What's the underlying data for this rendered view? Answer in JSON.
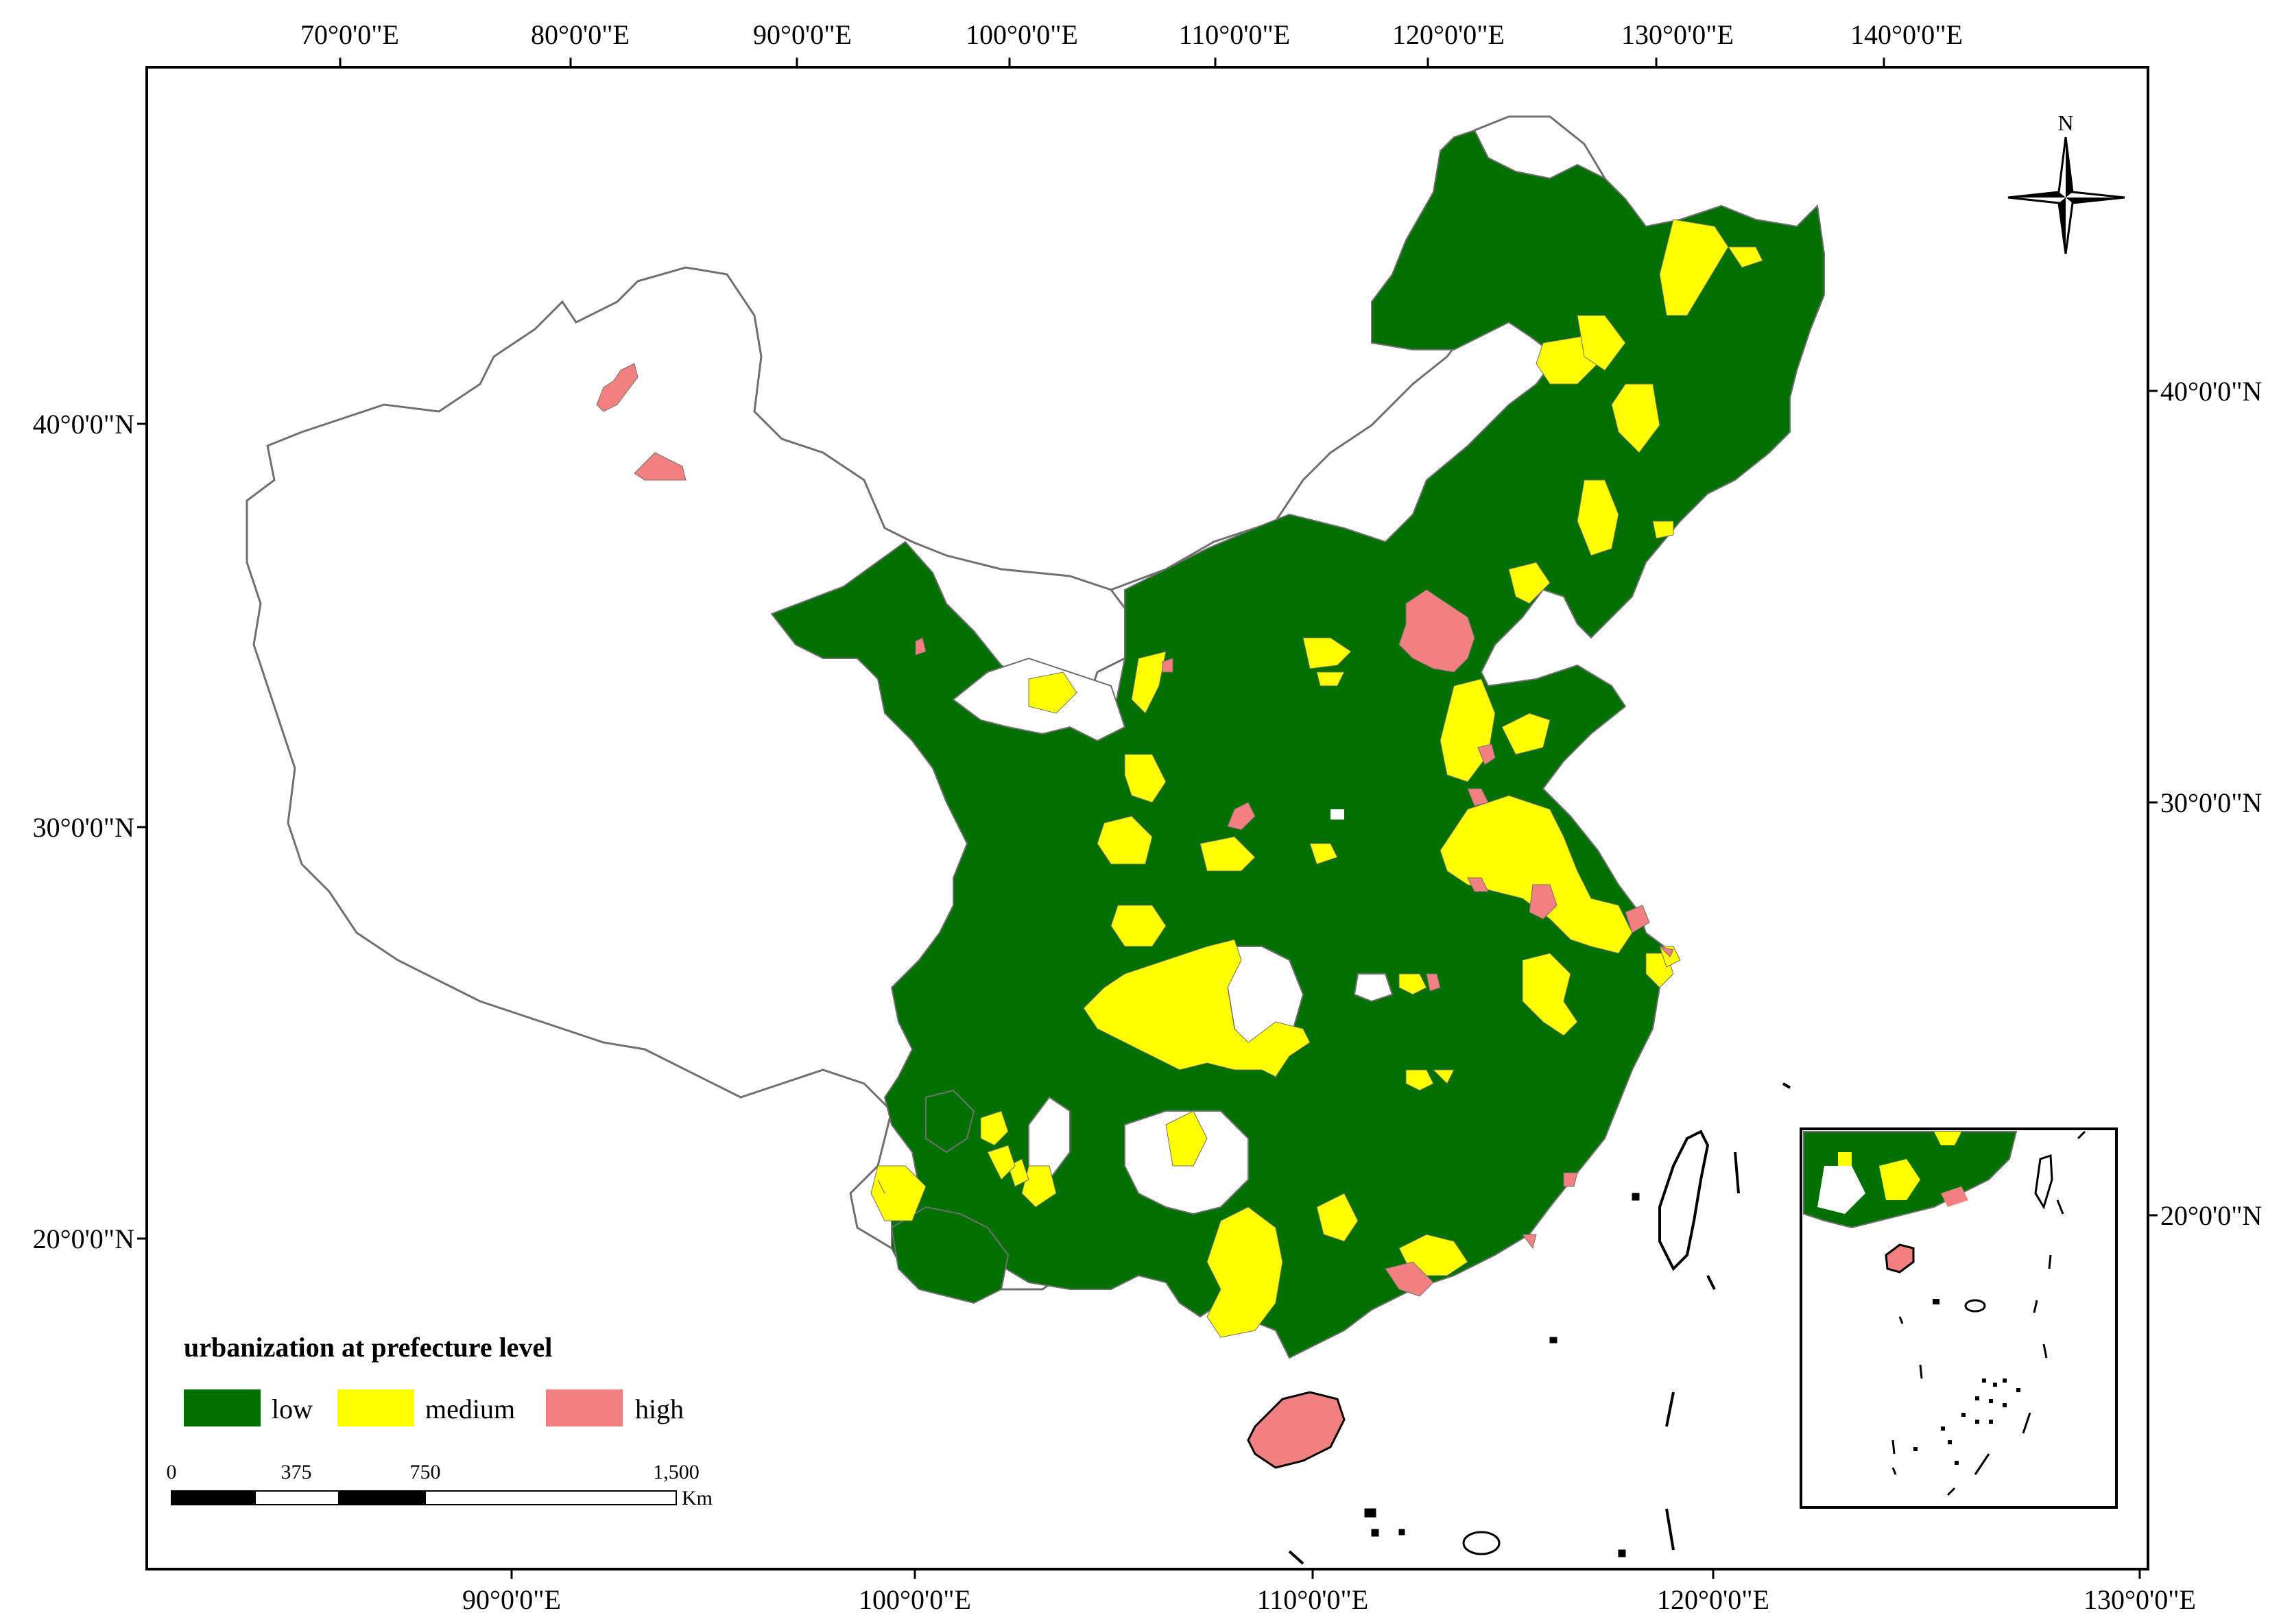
{
  "top_axis": {
    "labels": [
      "70°0'0\"E",
      "80°0'0\"E",
      "90°0'0\"E",
      "100°0'0\"E",
      "110°0'0\"E",
      "120°0'0\"E",
      "130°0'0\"E",
      "140°0'0\"E"
    ]
  },
  "bottom_axis": {
    "labels": [
      "90°0'0\"E",
      "100°0'0\"E",
      "110°0'0\"E",
      "120°0'0\"E",
      "130°0'0\"E"
    ]
  },
  "left_axis": {
    "labels": [
      "40°0'0\"N",
      "30°0'0\"N",
      "20°0'0\"N"
    ]
  },
  "right_axis": {
    "labels": [
      "40°0'0\"N",
      "30°0'0\"N",
      "20°0'0\"N"
    ]
  },
  "north_arrow": {
    "label": "N"
  },
  "legend": {
    "title": "urbanization at prefecture level",
    "items": [
      {
        "label": "low",
        "color": "#007000"
      },
      {
        "label": "medium",
        "color": "#ffff00"
      },
      {
        "label": "high",
        "color": "#f28080"
      }
    ]
  },
  "scale_bar": {
    "ticks": [
      "0",
      "375",
      "750",
      "1,500"
    ],
    "unit": "Km"
  },
  "colors": {
    "boundary": "#707070",
    "background": "#ffffff"
  }
}
